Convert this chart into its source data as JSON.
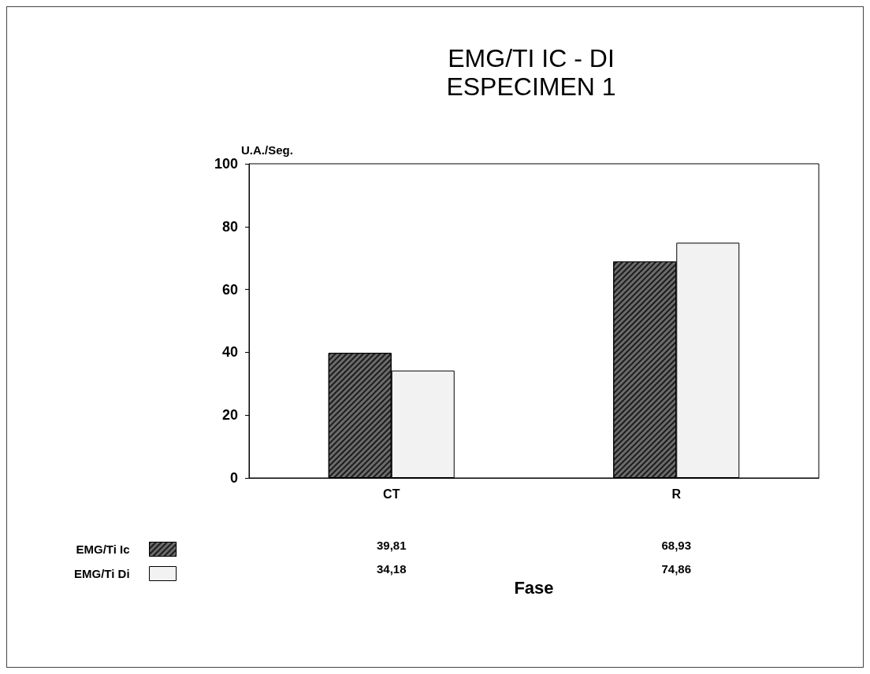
{
  "chart_data": {
    "type": "bar",
    "title": "EMG/TI IC - DI",
    "subtitle": "ESPECIMEN 1",
    "xlabel": "Fase",
    "ylabel": "U.A./Seg.",
    "categories": [
      "CT",
      "R"
    ],
    "series": [
      {
        "name": "EMG/Ti Ic",
        "color": "#6b6b6b",
        "values": [
          39.81,
          68.93
        ],
        "value_labels": [
          "39,81",
          "68,93"
        ]
      },
      {
        "name": "EMG/Ti Di",
        "color": "#f2f2f2",
        "values": [
          34.18,
          74.86
        ],
        "value_labels": [
          "34,18",
          "74,86"
        ]
      }
    ],
    "ylim": [
      0,
      100
    ],
    "yticks": [
      0,
      20,
      40,
      60,
      80,
      100
    ],
    "grid": false,
    "legend": "bottom left"
  }
}
